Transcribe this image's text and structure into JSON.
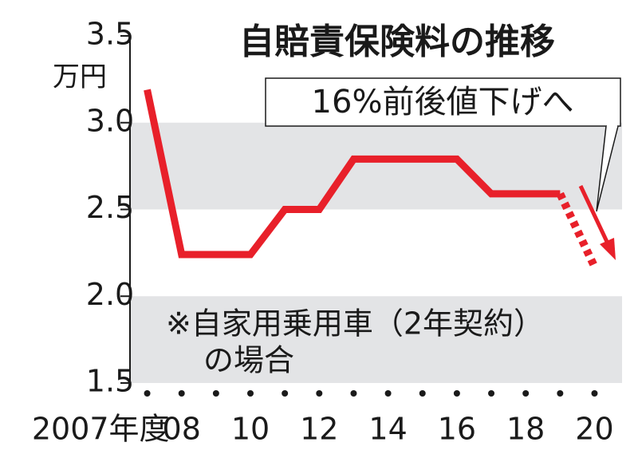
{
  "chart_data": {
    "type": "line",
    "title": "自賠責保険料の推移",
    "y_unit": "万円",
    "annotation": "16%前後値下げへ",
    "note": [
      "※自家用乗用車（2年契約）",
      "の場合"
    ],
    "x": [
      2007,
      2008,
      2009,
      2010,
      2011,
      2012,
      2013,
      2014,
      2015,
      2016,
      2017,
      2018,
      2019,
      2020
    ],
    "values": [
      3.19,
      2.24,
      2.24,
      2.24,
      2.5,
      2.5,
      2.79,
      2.79,
      2.79,
      2.79,
      2.59,
      2.59,
      2.59,
      2.17
    ],
    "dashed_from_index": 12,
    "color": "#e8202a",
    "xlim": [
      2006.5,
      2020.8
    ],
    "xticks": [
      {
        "value": 2007,
        "label": "2007年度"
      },
      {
        "value": 2008,
        "label": "08"
      },
      {
        "value": 2010,
        "label": "10"
      },
      {
        "value": 2012,
        "label": "12"
      },
      {
        "value": 2014,
        "label": "14"
      },
      {
        "value": 2016,
        "label": "16"
      },
      {
        "value": 2018,
        "label": "18"
      },
      {
        "value": 2020,
        "label": "20"
      }
    ],
    "ylim": [
      1.5,
      3.5
    ],
    "yticks": [
      3.5,
      {
        "value": 3,
        "label": "3.0"
      },
      2.5,
      {
        "value": 2,
        "label": "2.0"
      },
      1.5
    ],
    "shaded_bands": [
      [
        2.5,
        3
      ],
      [
        1.5,
        2
      ]
    ]
  }
}
